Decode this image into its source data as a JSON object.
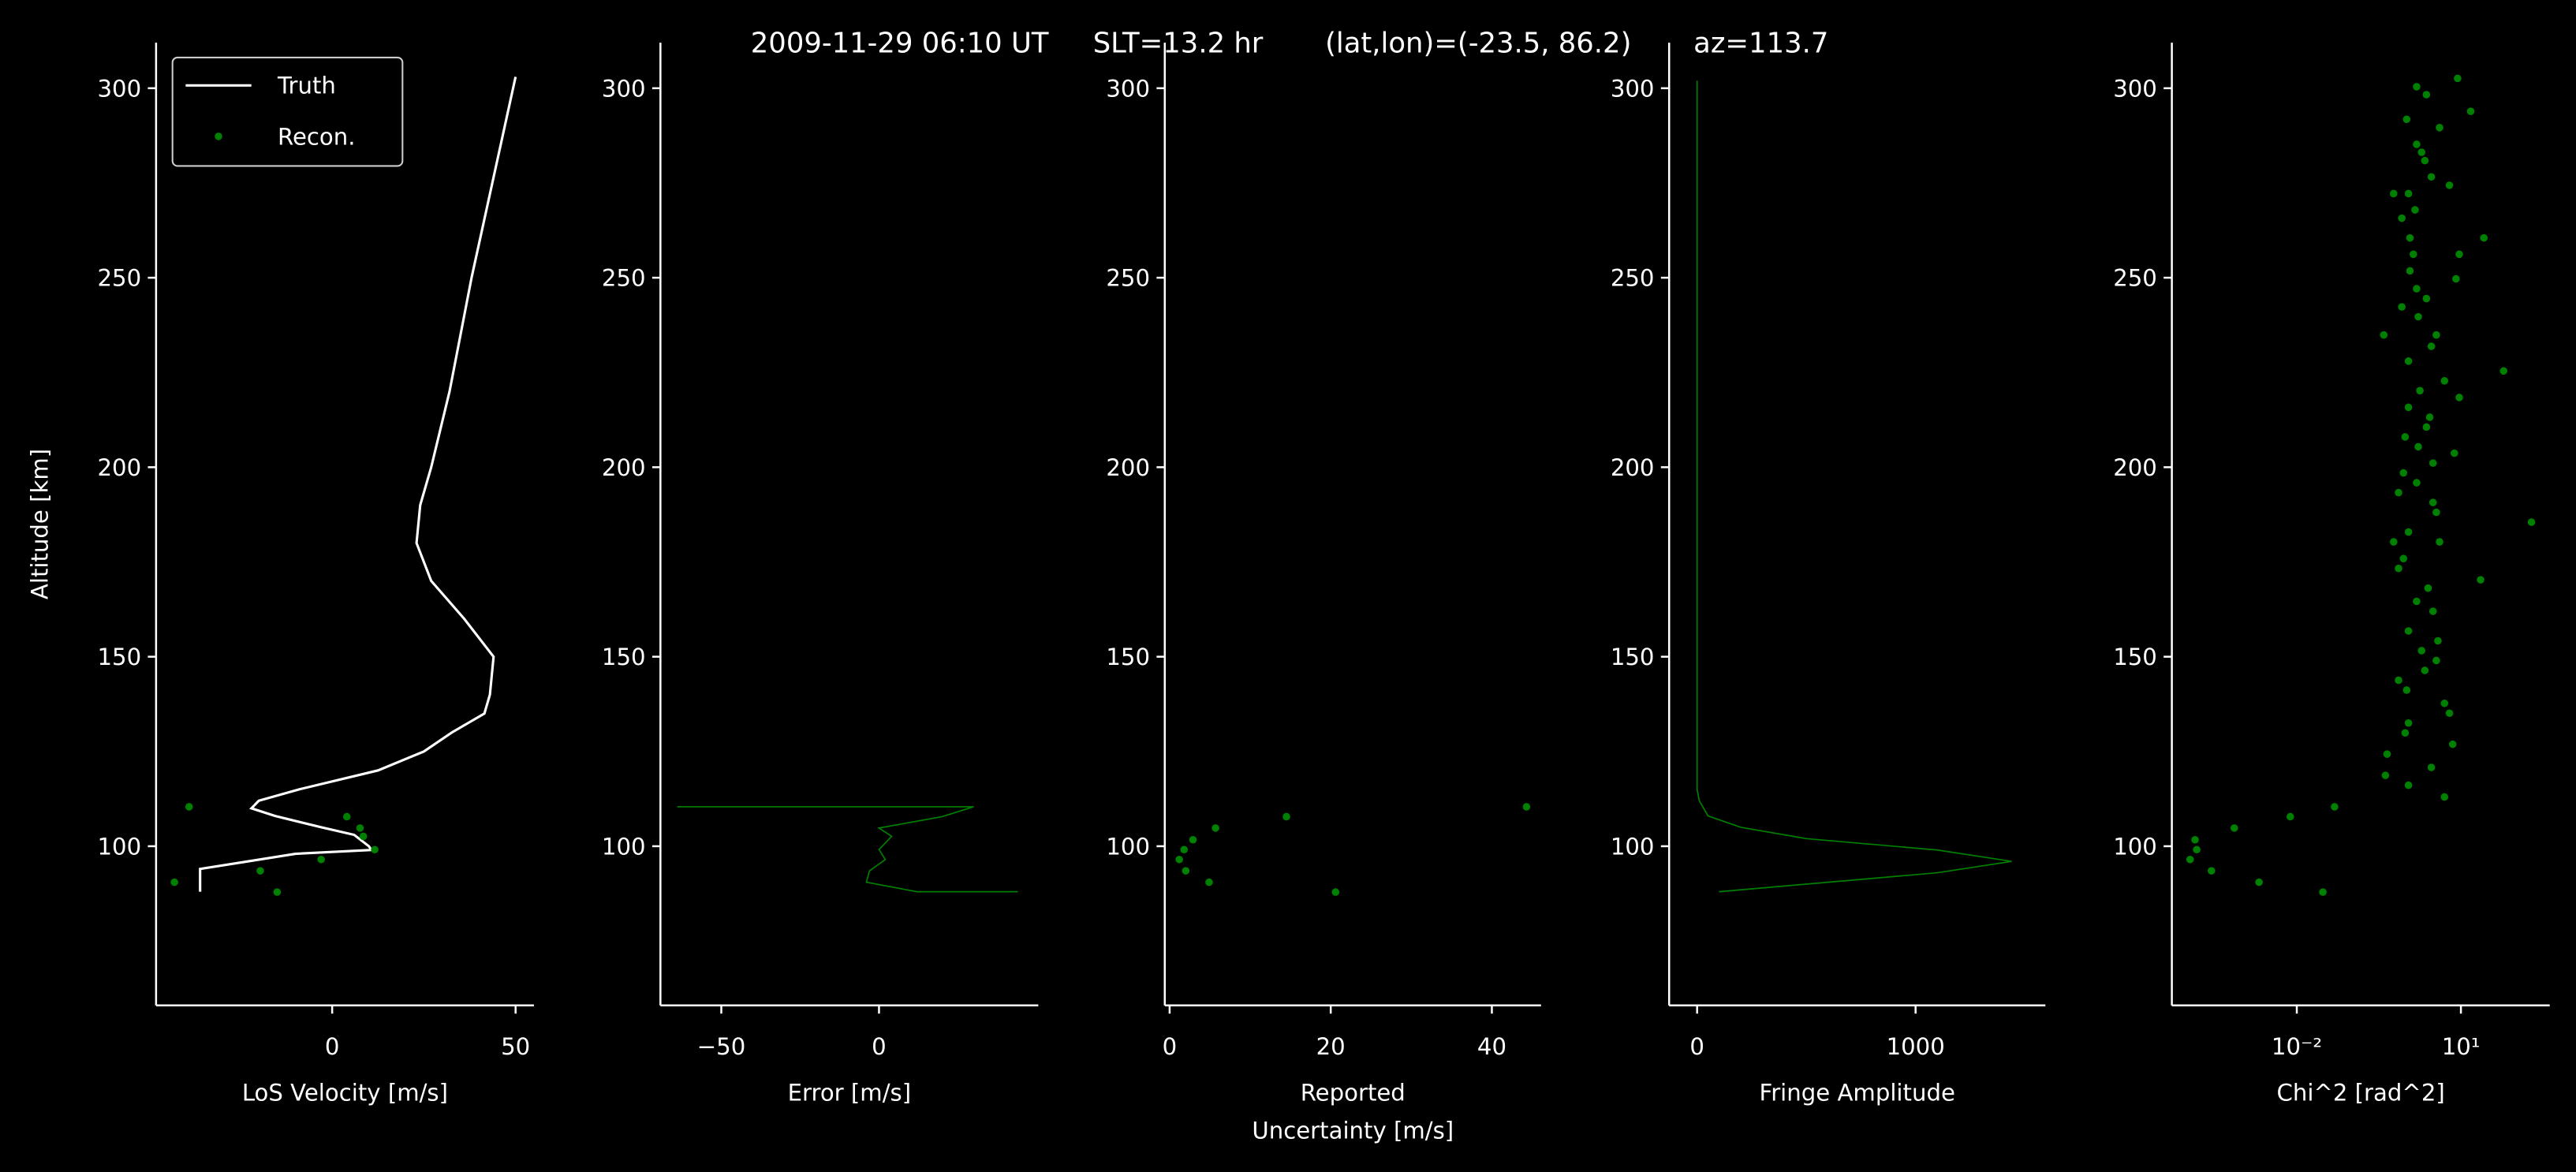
{
  "title": "2009-11-29 06:10 UT     SLT=13.2 hr       (lat,lon)=(-23.5, 86.2)       az=113.7",
  "chart_data": [
    {
      "type": "line",
      "xlabel": "LoS Velocity [m/s]",
      "ylabel": "Altitude [km]",
      "xlim": [
        -48,
        55
      ],
      "ylim": [
        58,
        312
      ],
      "xticks": [
        0,
        50
      ],
      "yticks": [
        100,
        150,
        200,
        250,
        300
      ],
      "legend": "upper left",
      "series": [
        {
          "name": "Truth",
          "type": "line",
          "color": "#ffffff",
          "x": [
            50,
            38,
            32,
            27,
            24,
            23,
            27,
            36,
            44,
            43,
            41.5,
            32.6,
            25,
            12.5,
            -9,
            -20,
            -22,
            -15.6,
            -3,
            6,
            10,
            10.7,
            -10,
            -23,
            -36,
            -36,
            -36
          ],
          "y": [
            303,
            250,
            220,
            200,
            190,
            180,
            170,
            160,
            150,
            140,
            135,
            130,
            125,
            120,
            115,
            112,
            110,
            108,
            105,
            103,
            100,
            99,
            98,
            96,
            94,
            92,
            88
          ]
        },
        {
          "name": "Recon.",
          "type": "scatter",
          "color": "#008000",
          "x": [
            -39,
            4,
            7.6,
            8.5,
            11.6,
            -3,
            -19.6,
            -43,
            -15
          ],
          "y": [
            110.4,
            107.8,
            104.8,
            102.6,
            99.1,
            96.5,
            93.5,
            90.5,
            87.9
          ]
        }
      ]
    },
    {
      "type": "line",
      "xlabel": "Error [m/s]",
      "xlim": [
        -69.3,
        50.5
      ],
      "ylim": [
        58,
        312
      ],
      "xticks": [
        {
          "value": -50,
          "label": "−50"
        },
        0
      ],
      "yticks": [
        100,
        150,
        200,
        250,
        300
      ],
      "series": [
        {
          "type": "line",
          "color": "#008000",
          "x": [
            -64,
            30,
            20,
            0,
            4,
            0,
            2,
            -3,
            -4,
            12,
            44
          ],
          "y": [
            110.4,
            110.4,
            107.8,
            104.8,
            102.6,
            99.1,
            96.5,
            93.5,
            90.5,
            88,
            88
          ]
        }
      ]
    },
    {
      "type": "scatter",
      "xlabel": [
        "Reported",
        "Uncertainty [m/s]"
      ],
      "xlim": [
        -0.6,
        46.1
      ],
      "ylim": [
        58,
        312
      ],
      "xticks": [
        0,
        20,
        40
      ],
      "yticks": [
        100,
        150,
        200,
        250,
        300
      ],
      "series": [
        {
          "type": "scatter",
          "color": "#008000",
          "x": [
            44.3,
            14.5,
            5.7,
            2.9,
            1.8,
            1.2,
            2,
            4.9,
            20.6
          ],
          "y": [
            110.4,
            107.8,
            104.8,
            101.7,
            99.1,
            96.5,
            93.5,
            90.5,
            87.9
          ]
        }
      ]
    },
    {
      "type": "line",
      "xlabel": "Fringe Amplitude",
      "xlim": [
        -128,
        1594
      ],
      "ylim": [
        58,
        312
      ],
      "xticks": [
        0,
        1000
      ],
      "yticks": [
        100,
        150,
        200,
        250,
        300
      ],
      "series": [
        {
          "type": "line",
          "color": "#008000",
          "x": [
            0,
            0,
            10,
            50,
            200,
            500,
            1100,
            1440,
            1100,
            500,
            100
          ],
          "y": [
            302,
            115,
            112,
            108,
            105,
            102,
            99,
            96,
            93,
            90,
            88
          ]
        }
      ]
    },
    {
      "type": "scatter",
      "xlabel": "Chi^2 [rad^2]",
      "xscale": "log",
      "xlim": [
        5.2e-05,
        420
      ],
      "ylim": [
        58,
        312
      ],
      "xticks": [
        {
          "value": 0.01,
          "label": "10⁻²"
        },
        {
          "value": 10,
          "label": "10¹"
        }
      ],
      "yticks": [
        100,
        150,
        200,
        250,
        300
      ],
      "series": [
        {
          "type": "scatter",
          "color": "#008000",
          "x": [
            8.7,
            1.55,
            2.34,
            15.1,
            1.02,
            4.07,
            1.55,
            1.91,
            2.19,
            2.88,
            1.1,
            6.17,
            0.589,
            1.45,
            0.832,
            26.3,
            1.17,
            1.35,
            9.33,
            1.17,
            8.13,
            1.55,
            2.34,
            0.832,
            1.66,
            0.389,
            3.55,
            2.88,
            1.1,
            60.3,
            5.01,
            1.78,
            9.33,
            1.1,
            2.69,
            2.34,
            0.955,
            1.66,
            7.59,
            3.09,
            0.891,
            1.55,
            0.724,
            3.09,
            3.55,
            195,
            1.1,
            4.07,
            0.589,
            0.891,
            0.724,
            22.9,
            2.51,
            1.55,
            3.09,
            1.1,
            3.8,
            1.91,
            3.55,
            2.19,
            0.724,
            1.02,
            5.01,
            6.17,
            1.1,
            0.955,
            7.08,
            0.447,
            2.88,
            0.417,
            1.1,
            5.01,
            0.049,
            0.0076,
            0.00072,
            0.000138,
            0.000148,
            0.000112,
            0.000275,
            0.00204,
            0.03
          ],
          "y": [
            302.6,
            300.4,
            298.3,
            293.9,
            291.8,
            289.6,
            285.2,
            283.1,
            280.9,
            276.6,
            272.2,
            274.4,
            272.2,
            267.9,
            265.7,
            260.5,
            260.5,
            256.2,
            256.2,
            251.8,
            249.7,
            247.1,
            244.5,
            242.3,
            239.7,
            234.9,
            234.9,
            231.9,
            228,
            225.4,
            222.8,
            220.2,
            218.4,
            215.8,
            213.2,
            210.6,
            208,
            205.4,
            203.7,
            201.1,
            198.5,
            195.9,
            193.3,
            190.7,
            188.1,
            185.5,
            182.9,
            180.3,
            180.3,
            175.9,
            173.3,
            170.3,
            168.1,
            164.6,
            162,
            156.8,
            154.2,
            151.6,
            149,
            146.4,
            143.8,
            141.2,
            137.7,
            135.1,
            132.5,
            129.9,
            126.9,
            124.3,
            120.8,
            118.7,
            116.1,
            113,
            110.4,
            107.8,
            104.8,
            101.7,
            99.1,
            96.5,
            93.5,
            90.5,
            87.9
          ]
        }
      ]
    }
  ]
}
